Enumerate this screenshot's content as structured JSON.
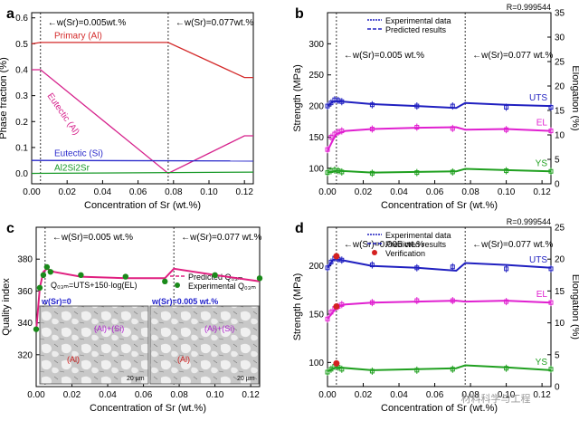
{
  "watermark": "材料科学与工程",
  "chart_data": [
    {
      "panel": "a",
      "type": "line",
      "xlabel": "Concentration of Sr (wt.%)",
      "ylabel": "Phase fraction (%)",
      "xlim": [
        0,
        0.125
      ],
      "ylim": [
        -0.04,
        0.62
      ],
      "xticks": [
        "0.00",
        "0.02",
        "0.04",
        "0.06",
        "0.08",
        "0.10",
        "0.12"
      ],
      "yticks": [
        "0.0",
        "0.1",
        "0.2",
        "0.3",
        "0.4",
        "0.5",
        "0.6"
      ],
      "vlines": [
        0.005,
        0.077
      ],
      "annotations": [
        "w(Sr)=0.005wt.%",
        "w(Sr)=0.077wt.%"
      ],
      "series": [
        {
          "name": "Primary (Al)",
          "color": "#d42a2a",
          "x": [
            0,
            0.005,
            0.077,
            0.12,
            0.125
          ],
          "y": [
            0.5,
            0.505,
            0.505,
            0.37,
            0.37
          ]
        },
        {
          "name": "Eutectic (Al)",
          "color": "#d6228c",
          "x": [
            0,
            0.005,
            0.077,
            0.12,
            0.125
          ],
          "y": [
            0.4,
            0.4,
            0.0,
            0.145,
            0.145
          ]
        },
        {
          "name": "Eutectic (Si)",
          "color": "#2a2acb",
          "x": [
            0,
            0.125
          ],
          "y": [
            0.05,
            0.048
          ]
        },
        {
          "name": "Al2Si2Sr",
          "color": "#1a9a2a",
          "x": [
            0,
            0.125
          ],
          "y": [
            0.0,
            0.005
          ]
        }
      ]
    },
    {
      "panel": "b",
      "type": "line",
      "note": "R=0.999544",
      "xlabel": "Concentration of Sr (wt.%)",
      "ylabel": "Strength (MPa)",
      "y2label": "Elongation (%)",
      "xlim": [
        0,
        0.125
      ],
      "ylim": [
        75,
        350
      ],
      "y2lim": [
        0,
        35
      ],
      "xticks": [
        "0.00",
        "0.02",
        "0.04",
        "0.06",
        "0.08",
        "0.10",
        "0.12"
      ],
      "yticks": [
        "100",
        "150",
        "200",
        "250",
        "300"
      ],
      "y2ticks": [
        "0",
        "5",
        "10",
        "15",
        "20",
        "25",
        "30",
        "35"
      ],
      "vlines": [
        0.005,
        0.077
      ],
      "annotations": [
        "w(Sr)=0.005 wt.%",
        "w(Sr)=0.077 wt.%"
      ],
      "legend": [
        "Experimental data",
        "Predicted results"
      ],
      "series": [
        {
          "name": "UTS",
          "color": "#2020c0",
          "x": [
            0,
            0.003,
            0.005,
            0.025,
            0.05,
            0.072,
            0.077,
            0.1,
            0.125
          ],
          "y": [
            200,
            207,
            208,
            203,
            200,
            197,
            205,
            202,
            200
          ],
          "exp_x": [
            0,
            0.002,
            0.004,
            0.006,
            0.008,
            0.025,
            0.05,
            0.07,
            0.1,
            0.125
          ],
          "exp_y": [
            200,
            205,
            210,
            209,
            207,
            202,
            200,
            200,
            198,
            198
          ]
        },
        {
          "name": "EL",
          "color": "#e020d0",
          "x": [
            0,
            0.003,
            0.005,
            0.01,
            0.025,
            0.05,
            0.072,
            0.077,
            0.1,
            0.125
          ],
          "y": [
            128,
            145,
            155,
            160,
            163,
            165,
            166,
            162,
            163,
            160
          ],
          "exp_x": [
            0,
            0.002,
            0.004,
            0.006,
            0.008,
            0.025,
            0.05,
            0.07,
            0.1,
            0.125
          ],
          "exp_y": [
            130,
            150,
            155,
            158,
            160,
            163,
            166,
            164,
            162,
            160
          ]
        },
        {
          "name": "YS",
          "color": "#20a020",
          "x": [
            0,
            0.005,
            0.025,
            0.05,
            0.072,
            0.077,
            0.1,
            0.125
          ],
          "y": [
            93,
            96,
            93,
            94,
            95,
            99,
            97,
            95
          ],
          "exp_x": [
            0,
            0.002,
            0.004,
            0.006,
            0.008,
            0.025,
            0.05,
            0.07,
            0.1,
            0.125
          ],
          "exp_y": [
            93,
            96,
            97,
            96,
            94,
            92,
            93,
            94,
            96,
            95
          ]
        }
      ]
    },
    {
      "panel": "c",
      "type": "line",
      "xlabel": "Concentration of Sr (wt.%)",
      "ylabel": "Quality index",
      "xlim": [
        0,
        0.125
      ],
      "ylim": [
        300,
        400
      ],
      "xticks": [
        "0.00",
        "0.02",
        "0.04",
        "0.06",
        "0.08",
        "0.10",
        "0.12"
      ],
      "yticks": [
        "320",
        "340",
        "360",
        "380"
      ],
      "vlines": [
        0.005,
        0.077
      ],
      "annotations": [
        "w(Sr)=0.005 wt.%",
        "w(Sr)=0.077 wt.%"
      ],
      "formula": "Q₀₃ₘ=UTS+150·log(EL)",
      "legend": [
        "Predicted Q₀₃ₘ",
        "Experimental Q₀₃ₘ"
      ],
      "inset_labels": {
        "left_title": "w(Sr)=0",
        "right_title": "w(Sr)=0.005 wt.%",
        "al": "(Al)",
        "al_si": "(Al)+(Si)",
        "scale": "20 µm"
      },
      "series": [
        {
          "name": "Predicted",
          "color": "#e02080",
          "x": [
            0,
            0.002,
            0.004,
            0.006,
            0.01,
            0.025,
            0.05,
            0.072,
            0.077,
            0.1,
            0.125
          ],
          "y": [
            335,
            362,
            372,
            374,
            372,
            369,
            368,
            368,
            374,
            370,
            366
          ]
        },
        {
          "name": "Experimental",
          "color": "#1a8a1a",
          "x": [
            0,
            0.002,
            0.004,
            0.006,
            0.008,
            0.025,
            0.05,
            0.072,
            0.1,
            0.125
          ],
          "y": [
            336,
            362,
            370,
            375,
            372,
            370,
            369,
            366,
            370,
            368
          ]
        }
      ]
    },
    {
      "panel": "d",
      "type": "line",
      "note": "R=0.999544",
      "xlabel": "Concentration of Sr (wt.%)",
      "ylabel": "Strength (MPa)",
      "y2label": "Elongation (%)",
      "xlim": [
        0,
        0.125
      ],
      "ylim": [
        75,
        240
      ],
      "y2lim": [
        0,
        25
      ],
      "xticks": [
        "0.00",
        "0.02",
        "0.04",
        "0.06",
        "0.08",
        "0.10",
        "0.12"
      ],
      "yticks": [
        "100",
        "150",
        "200"
      ],
      "y2ticks": [
        "0",
        "5",
        "10",
        "15",
        "20",
        "25"
      ],
      "vlines": [
        0.005,
        0.077
      ],
      "annotations": [
        "w(Sr)=0.005 wt.%",
        "w(Sr)=0.077 wt.%"
      ],
      "legend": [
        "Experimental data",
        "Predicted results",
        "Verification"
      ],
      "series": [
        {
          "name": "UTS",
          "color": "#2020c0",
          "x": [
            0,
            0.003,
            0.005,
            0.025,
            0.05,
            0.072,
            0.077,
            0.1,
            0.125
          ],
          "y": [
            198,
            206,
            207,
            200,
            198,
            195,
            203,
            201,
            198
          ],
          "exp_x": [
            0,
            0.002,
            0.004,
            0.006,
            0.008,
            0.025,
            0.05,
            0.07,
            0.1,
            0.125
          ],
          "exp_y": [
            198,
            204,
            208,
            207,
            206,
            201,
            198,
            199,
            197,
            197
          ]
        },
        {
          "name": "EL",
          "color": "#e020d0",
          "x": [
            0,
            0.003,
            0.005,
            0.01,
            0.025,
            0.05,
            0.072,
            0.077,
            0.1,
            0.125
          ],
          "y": [
            145,
            152,
            158,
            160,
            162,
            163,
            164,
            163,
            164,
            162
          ],
          "exp_x": [
            0,
            0.002,
            0.004,
            0.006,
            0.008,
            0.025,
            0.05,
            0.07,
            0.1,
            0.125
          ],
          "exp_y": [
            145,
            152,
            156,
            158,
            160,
            162,
            164,
            164,
            163,
            162
          ]
        },
        {
          "name": "YS",
          "color": "#20a020",
          "x": [
            0,
            0.005,
            0.025,
            0.05,
            0.072,
            0.077,
            0.1,
            0.125
          ],
          "y": [
            91,
            95,
            92,
            93,
            94,
            97,
            95,
            92
          ],
          "exp_x": [
            0,
            0.002,
            0.004,
            0.006,
            0.008,
            0.025,
            0.05,
            0.07,
            0.1,
            0.125
          ],
          "exp_y": [
            90,
            93,
            96,
            95,
            93,
            91,
            92,
            93,
            94,
            93
          ]
        },
        {
          "name": "Verification",
          "color": "#d42020",
          "x": [
            0.005,
            0.005,
            0.005
          ],
          "y": [
            210,
            158,
            99
          ]
        }
      ]
    }
  ]
}
